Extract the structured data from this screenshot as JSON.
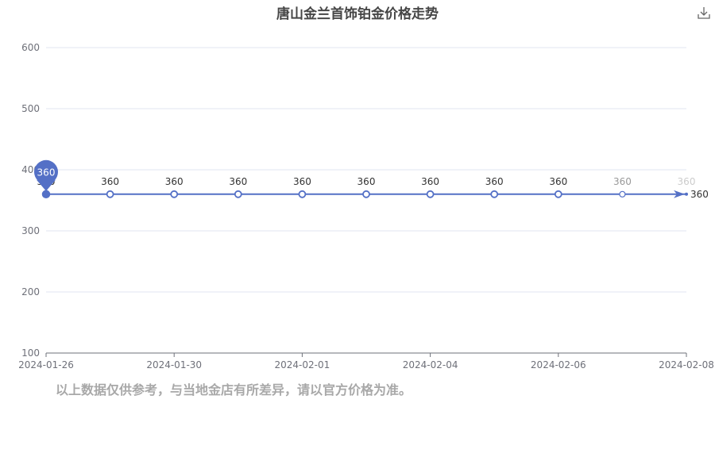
{
  "chart_data": {
    "type": "line",
    "title": "唐山金兰首饰铂金价格走势",
    "x_ticks": [
      "2024-01-26",
      "2024-01-30",
      "2024-02-01",
      "2024-02-04",
      "2024-02-06",
      "2024-02-08"
    ],
    "y_ticks": [
      100,
      200,
      300,
      400,
      500,
      600
    ],
    "ylim": [
      100,
      600
    ],
    "grid": true,
    "series": [
      {
        "values": [
          360,
          360,
          360,
          360,
          360,
          360,
          360,
          360,
          360,
          360,
          360
        ],
        "color": "#5470c6"
      }
    ],
    "max_marker": {
      "value": 360
    },
    "end_label": "360",
    "accent_color": "#5470c6"
  },
  "toolbar": {
    "download_icon": "download-icon"
  },
  "footer": {
    "note": "以上数据仅供参考，与当地金店有所差异，请以官方价格为准。"
  }
}
